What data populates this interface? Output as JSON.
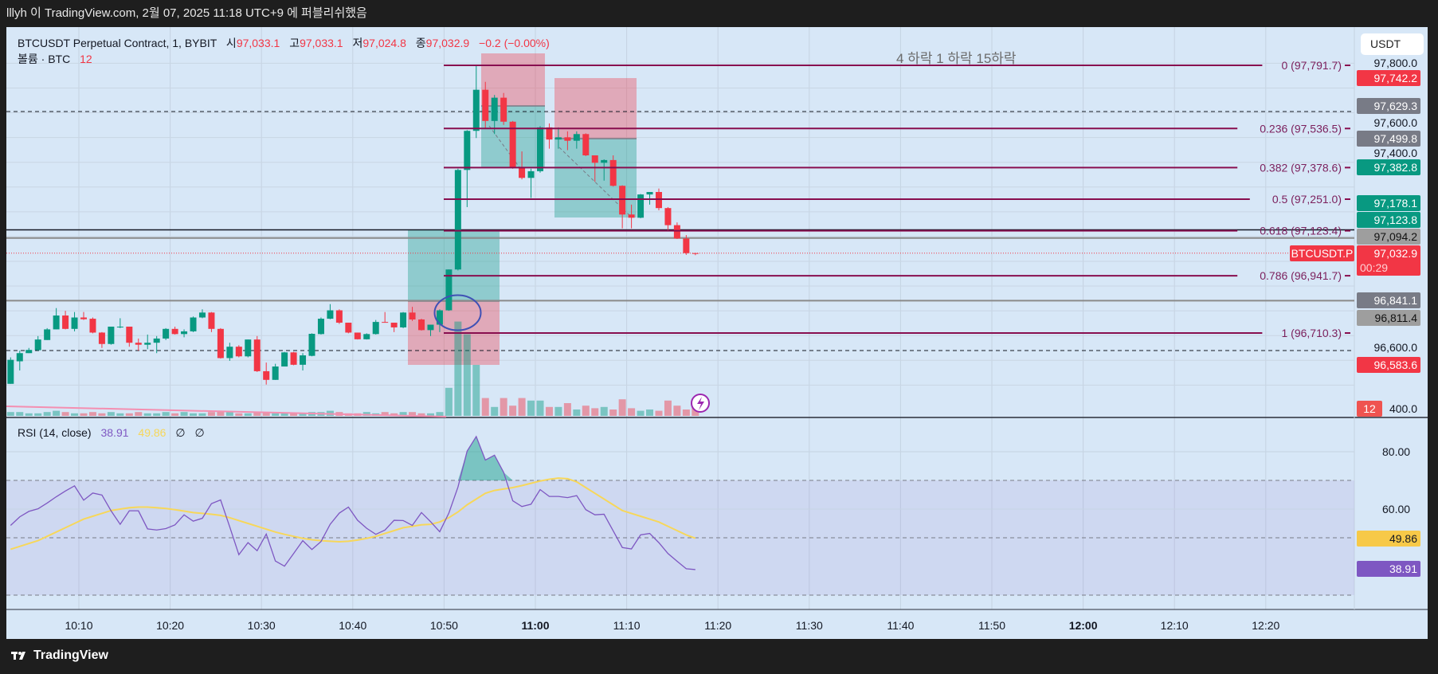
{
  "window": {
    "title": "lllyh 이 TradingView.com, 2월 07, 2025 11:18 UTC+9 에 퍼블리쉬했음"
  },
  "legend": {
    "symbol": "BTCUSDT Perpetual Contract, 1, BYBIT",
    "open_label": "시",
    "open": "97,033.1",
    "high_label": "고",
    "high": "97,033.1",
    "low_label": "저",
    "low": "97,024.8",
    "close_label": "종",
    "close": "97,032.9",
    "change": "−0.2 (−0.00%)",
    "volume_label": "볼륨 · BTC",
    "volume": "12"
  },
  "currency_button": "USDT",
  "annotation_text": "4 하락 1 하락 15하락",
  "fib_levels": [
    {
      "label": "0 (97,791.7)",
      "price": 97791.7
    },
    {
      "label": "0.236 (97,536.5)",
      "price": 97536.5
    },
    {
      "label": "0.382 (97,378.6)",
      "price": 97378.6
    },
    {
      "label": "0.5 (97,251.0)",
      "price": 97251.0
    },
    {
      "label": "0.618 (97,123.4)",
      "price": 97123.4
    },
    {
      "label": "0.786 (96,941.7)",
      "price": 96941.7
    },
    {
      "label": "1 (96,710.3)",
      "price": 96710.3
    }
  ],
  "price_axis": {
    "ticks": [
      "97,800.0",
      "97,600.0",
      "97,400.0",
      "96,600.0",
      "400.0"
    ],
    "badges": [
      {
        "text": "97,742.2",
        "price": 97742.2,
        "color": "#f23645",
        "fg": "#ffffff"
      },
      {
        "text": "97,629.3",
        "price": 97629.3,
        "color": "#787b86",
        "fg": "#ffffff"
      },
      {
        "text": "97,499.8",
        "price": 97499.8,
        "color": "#787b86",
        "fg": "#ffffff"
      },
      {
        "text": "97,382.8",
        "price": 97382.8,
        "color": "#089981",
        "fg": "#ffffff"
      },
      {
        "text": "97,178.1",
        "price": 97178.1,
        "color": "#089981",
        "fg": "#ffffff"
      },
      {
        "text": "97,123.8",
        "price": 97123.8,
        "color": "#089981",
        "fg": "#ffffff"
      },
      {
        "text": "97,094.2",
        "price": 97094.2,
        "color": "#9e9e9e",
        "fg": "#111111"
      },
      {
        "text": "96,841.1",
        "price": 96841.1,
        "color": "#787b86",
        "fg": "#ffffff"
      },
      {
        "text": "96,811.4",
        "price": 96811.4,
        "color": "#9e9e9e",
        "fg": "#111111"
      },
      {
        "text": "96,583.6",
        "price": 96583.6,
        "color": "#f23645",
        "fg": "#ffffff"
      }
    ],
    "current_price": "97,032.9",
    "countdown": "00:29",
    "symbol_tag": "BTCUSDT.P",
    "volume_badge": "12"
  },
  "rsi": {
    "label": "RSI (14, close)",
    "value": "38.91",
    "ma_value": "49.86",
    "extra1": "∅",
    "extra2": "∅",
    "axis_ticks": [
      "80.00",
      "60.00"
    ]
  },
  "time_axis": [
    {
      "label": "10:10",
      "minute": 10
    },
    {
      "label": "10:20",
      "minute": 20
    },
    {
      "label": "10:30",
      "minute": 30
    },
    {
      "label": "10:40",
      "minute": 40
    },
    {
      "label": "10:50",
      "minute": 50
    },
    {
      "label": "11:00",
      "minute": 60,
      "bold": true
    },
    {
      "label": "11:10",
      "minute": 70
    },
    {
      "label": "11:20",
      "minute": 80
    },
    {
      "label": "11:30",
      "minute": 90
    },
    {
      "label": "11:40",
      "minute": 100
    },
    {
      "label": "11:50",
      "minute": 110
    },
    {
      "label": "12:00",
      "minute": 120,
      "bold": true
    },
    {
      "label": "12:10",
      "minute": 130
    },
    {
      "label": "12:20",
      "minute": 140
    }
  ],
  "footer": {
    "brand": "TradingView"
  },
  "colors": {
    "up": "#089981",
    "down": "#f23645",
    "fib": "#880e4f",
    "rsi": "#7e57c2",
    "rsi_ma": "#f7d75a",
    "bg": "#d7e7f7"
  },
  "chart_data": {
    "type": "candlestick",
    "title": "BTCUSDT Perpetual Contract, 1, BYBIT",
    "first_candle_minute": 2,
    "ohlc": [
      [
        96505,
        96612,
        96505,
        96602
      ],
      [
        96596,
        96639,
        96559,
        96629
      ],
      [
        96629,
        96650,
        96629,
        96642
      ],
      [
        96641,
        96698,
        96639,
        96684
      ],
      [
        96682,
        96730,
        96682,
        96725
      ],
      [
        96725,
        96811,
        96725,
        96781
      ],
      [
        96781,
        96800,
        96725,
        96727
      ],
      [
        96727,
        96795,
        96717,
        96773
      ],
      [
        96773,
        96795,
        96763,
        96766
      ],
      [
        96768,
        96773,
        96709,
        96712
      ],
      [
        96712,
        96714,
        96650,
        96666
      ],
      [
        96666,
        96736,
        96663,
        96736
      ],
      [
        96734,
        96770,
        96730,
        96736
      ],
      [
        96736,
        96736,
        96655,
        96671
      ],
      [
        96671,
        96688,
        96639,
        96663
      ],
      [
        96663,
        96704,
        96645,
        96671
      ],
      [
        96671,
        96698,
        96629,
        96688
      ],
      [
        96688,
        96730,
        96682,
        96727
      ],
      [
        96727,
        96736,
        96704,
        96706
      ],
      [
        96706,
        96725,
        96693,
        96717
      ],
      [
        96717,
        96777,
        96714,
        96773
      ],
      [
        96773,
        96806,
        96770,
        96793
      ],
      [
        96793,
        96795,
        96714,
        96727
      ],
      [
        96727,
        96730,
        96607,
        96609
      ],
      [
        96609,
        96671,
        96598,
        96655
      ],
      [
        96655,
        96661,
        96612,
        96616
      ],
      [
        96616,
        96684,
        96612,
        96684
      ],
      [
        96684,
        96698,
        96553,
        96556
      ],
      [
        96556,
        96591,
        96502,
        96521
      ],
      [
        96521,
        96586,
        96521,
        96575
      ],
      [
        96575,
        96634,
        96575,
        96632
      ],
      [
        96632,
        96634,
        96580,
        96582
      ],
      [
        96582,
        96629,
        96559,
        96620
      ],
      [
        96618,
        96709,
        96616,
        96707
      ],
      [
        96706,
        96773,
        96704,
        96768
      ],
      [
        96768,
        96827,
        96766,
        96802
      ],
      [
        96802,
        96806,
        96747,
        96752
      ],
      [
        96752,
        96752,
        96709,
        96712
      ],
      [
        96712,
        96712,
        96684,
        96685
      ],
      [
        96685,
        96709,
        96684,
        96706
      ],
      [
        96706,
        96763,
        96704,
        96755
      ],
      [
        96755,
        96795,
        96752,
        96752
      ],
      [
        96752,
        96752,
        96714,
        96733
      ],
      [
        96733,
        96795,
        96730,
        96793
      ],
      [
        96793,
        96816,
        96759,
        96765
      ],
      [
        96765,
        96768,
        96720,
        96722
      ],
      [
        96722,
        96744,
        96698,
        96744
      ],
      [
        96744,
        96806,
        96714,
        96802
      ],
      [
        96802,
        96967,
        96800,
        96967
      ],
      [
        96967,
        97374,
        96963,
        97369
      ],
      [
        97369,
        97530,
        97219,
        97527
      ],
      [
        97527,
        97791.7,
        97498,
        97693
      ],
      [
        97693,
        97725,
        97535,
        97567
      ],
      [
        97567,
        97672,
        97514,
        97661
      ],
      [
        97661,
        97680,
        97551,
        97564
      ],
      [
        97564,
        97567,
        97374,
        97380
      ],
      [
        97380,
        97444,
        97331,
        97337
      ],
      [
        97337,
        97374,
        97256,
        97364
      ],
      [
        97364,
        97546,
        97358,
        97541
      ],
      [
        97541,
        97557,
        97455,
        97492
      ],
      [
        97492,
        97541,
        97455,
        97501
      ],
      [
        97501,
        97525,
        97449,
        97487
      ],
      [
        97487,
        97525,
        97455,
        97514
      ],
      [
        97514,
        97517,
        97425,
        97428
      ],
      [
        97428,
        97428,
        97321,
        97398
      ],
      [
        97398,
        97412,
        97326,
        97409
      ],
      [
        97409,
        97428,
        97302,
        97305
      ],
      [
        97305,
        97307,
        97133,
        97189
      ],
      [
        97189,
        97229,
        97133,
        97176
      ],
      [
        97176,
        97272,
        97174,
        97270
      ],
      [
        97270,
        97280,
        97229,
        97280
      ],
      [
        97280,
        97294,
        97206,
        97215
      ],
      [
        97215,
        97219,
        97122,
        97146
      ],
      [
        97146,
        97157,
        97090,
        97092
      ],
      [
        97092,
        97106,
        97026,
        97033.1
      ],
      [
        97033.1,
        97033.1,
        97024.8,
        97032.9
      ]
    ],
    "volume": [
      3,
      3,
      2,
      2,
      3,
      4,
      3,
      2,
      2,
      3,
      2,
      3,
      2,
      2,
      3,
      2,
      2,
      3,
      2,
      3,
      2,
      2,
      3,
      4,
      3,
      2,
      2,
      3,
      3,
      2,
      2,
      2,
      2,
      3,
      3,
      4,
      3,
      2,
      2,
      3,
      2,
      3,
      2,
      3,
      3,
      2,
      2,
      3,
      22,
      74,
      64,
      40,
      14,
      7,
      14,
      8,
      14,
      12,
      12,
      7,
      7,
      10,
      5,
      8,
      6,
      7,
      5,
      13,
      6,
      4,
      5,
      4,
      12,
      8,
      5,
      12
    ],
    "rsi": [
      54.3,
      57.3,
      59.2,
      60.1,
      62.1,
      64.3,
      66.3,
      68.1,
      63.1,
      65.6,
      64.9,
      59.4,
      54.7,
      59.4,
      59.4,
      53.1,
      52.7,
      53.2,
      54.5,
      58.0,
      55.8,
      56.8,
      61.9,
      63.2,
      53.8,
      44.1,
      48.3,
      45.5,
      51.3,
      41.9,
      40.1,
      44.5,
      49.0,
      45.9,
      48.7,
      54.7,
      58.6,
      60.7,
      56.1,
      53.3,
      51.2,
      52.7,
      56.1,
      56.0,
      54.3,
      58.8,
      55.6,
      52.1,
      58.6,
      67.7,
      80.2,
      85.3,
      77.1,
      78.8,
      72.8,
      62.9,
      60.9,
      61.7,
      66.8,
      64.4,
      64.4,
      64.0,
      64.7,
      59.8,
      58.0,
      58.2,
      52.4,
      46.6,
      46.1,
      51.0,
      51.5,
      48.3,
      44.5,
      41.8,
      39.2,
      38.91
    ],
    "rsi_ma": [
      46,
      47,
      48,
      49,
      50.5,
      52,
      53.5,
      55,
      56.5,
      57.5,
      58.5,
      59.5,
      60,
      60.5,
      60.7,
      60.7,
      60.5,
      60.2,
      59.8,
      59.3,
      58.8,
      58.5,
      58.2,
      57.8,
      57,
      56,
      55,
      54,
      53,
      52,
      51.2,
      50.5,
      49.8,
      49.3,
      49,
      48.8,
      48.6,
      48.8,
      49.2,
      49.8,
      50.5,
      51.5,
      52.5,
      53.5,
      54,
      54.5,
      54.7,
      55.5,
      57,
      59,
      61.5,
      63.5,
      65.5,
      66.5,
      67,
      67.5,
      68.2,
      69,
      69.8,
      70.4,
      70.8,
      70.6,
      69.5,
      67.5,
      65.5,
      63.5,
      61.5,
      59.5,
      58.5,
      57.5,
      56.5,
      55.5,
      54,
      52.5,
      51,
      49.86
    ],
    "rsi_bands": [
      70,
      50,
      30
    ],
    "horizontal_lines": [
      97600,
      96640,
      97094.2,
      96841.1
    ],
    "ylim": [
      96400,
      97800
    ]
  }
}
